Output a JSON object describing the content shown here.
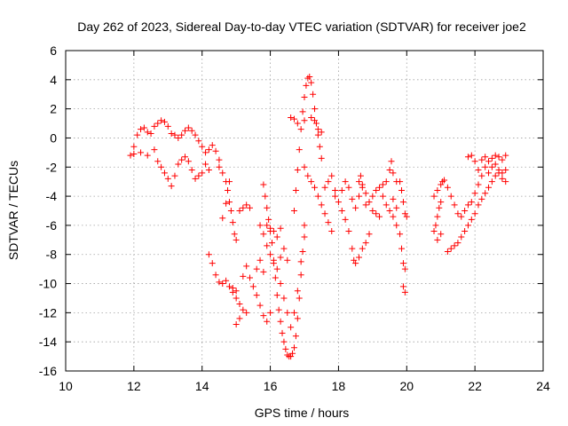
{
  "chart_data": {
    "type": "scatter",
    "title": "Day 262 of 2023, Sidereal Day-to-day VTEC variation (SDTVAR) for receiver joe2",
    "xlabel": "GPS time / hours",
    "ylabel": "SDTVAR / TECUs",
    "xlim": [
      10,
      24
    ],
    "ylim": [
      -16,
      6
    ],
    "xticks": [
      10,
      12,
      14,
      16,
      18,
      20,
      22,
      24
    ],
    "yticks": [
      -16,
      -14,
      -12,
      -10,
      -8,
      -6,
      -4,
      -2,
      0,
      2,
      4,
      6
    ],
    "grid": true,
    "marker": "+",
    "color": "#ff0000",
    "series": [
      {
        "name": "joe2",
        "points": [
          [
            11.9,
            -1.2
          ],
          [
            12.0,
            -0.6
          ],
          [
            12.1,
            0.2
          ],
          [
            12.2,
            0.6
          ],
          [
            12.3,
            0.7
          ],
          [
            12.4,
            0.4
          ],
          [
            12.5,
            0.3
          ],
          [
            12.6,
            0.8
          ],
          [
            12.7,
            1.0
          ],
          [
            12.8,
            1.2
          ],
          [
            12.9,
            1.1
          ],
          [
            13.0,
            0.8
          ],
          [
            13.1,
            0.3
          ],
          [
            13.2,
            0.2
          ],
          [
            13.3,
            0.0
          ],
          [
            13.4,
            0.2
          ],
          [
            13.5,
            0.5
          ],
          [
            13.6,
            0.7
          ],
          [
            13.7,
            0.5
          ],
          [
            13.8,
            0.2
          ],
          [
            13.9,
            -0.2
          ],
          [
            14.0,
            -0.6
          ],
          [
            14.1,
            -1.0
          ],
          [
            14.2,
            -0.8
          ],
          [
            14.3,
            -0.5
          ],
          [
            14.4,
            -0.9
          ],
          [
            14.5,
            -1.5
          ],
          [
            12.0,
            -1.1
          ],
          [
            12.2,
            -1.0
          ],
          [
            12.4,
            -1.2
          ],
          [
            12.6,
            -0.8
          ],
          [
            12.7,
            -1.6
          ],
          [
            12.8,
            -2.0
          ],
          [
            12.9,
            -2.4
          ],
          [
            13.0,
            -2.8
          ],
          [
            13.1,
            -3.3
          ],
          [
            13.2,
            -2.6
          ],
          [
            13.3,
            -1.8
          ],
          [
            13.4,
            -1.5
          ],
          [
            13.5,
            -1.3
          ],
          [
            13.6,
            -1.6
          ],
          [
            13.7,
            -2.2
          ],
          [
            13.8,
            -2.8
          ],
          [
            13.9,
            -2.6
          ],
          [
            14.0,
            -2.4
          ],
          [
            14.1,
            -1.8
          ],
          [
            14.2,
            -2.2
          ],
          [
            14.5,
            -2.0
          ],
          [
            14.6,
            -2.4
          ],
          [
            14.7,
            -3.0
          ],
          [
            14.75,
            -3.6
          ],
          [
            14.8,
            -4.4
          ],
          [
            14.85,
            -5.0
          ],
          [
            14.9,
            -5.8
          ],
          [
            14.95,
            -6.6
          ],
          [
            15.0,
            -7.0
          ],
          [
            14.8,
            -3.0
          ],
          [
            14.7,
            -4.5
          ],
          [
            14.6,
            -5.5
          ],
          [
            15.1,
            -5.0
          ],
          [
            15.2,
            -4.8
          ],
          [
            15.3,
            -4.6
          ],
          [
            15.4,
            -4.8
          ],
          [
            14.2,
            -8.0
          ],
          [
            14.3,
            -8.6
          ],
          [
            14.4,
            -9.4
          ],
          [
            14.5,
            -9.9
          ],
          [
            14.6,
            -10.0
          ],
          [
            14.7,
            -9.8
          ],
          [
            14.8,
            -10.2
          ],
          [
            14.9,
            -10.6
          ],
          [
            15.0,
            -11.0
          ],
          [
            15.1,
            -11.4
          ],
          [
            15.2,
            -11.8
          ],
          [
            15.3,
            -12.0
          ],
          [
            15.0,
            -12.8
          ],
          [
            15.1,
            -12.4
          ],
          [
            14.9,
            -10.3
          ],
          [
            15.0,
            -10.5
          ],
          [
            15.2,
            -9.5
          ],
          [
            15.3,
            -8.8
          ],
          [
            15.4,
            -9.6
          ],
          [
            15.5,
            -10.2
          ],
          [
            15.6,
            -10.8
          ],
          [
            15.7,
            -11.5
          ],
          [
            15.8,
            -12.2
          ],
          [
            15.9,
            -12.6
          ],
          [
            16.0,
            -12.0
          ],
          [
            15.6,
            -9.0
          ],
          [
            15.7,
            -8.4
          ],
          [
            15.8,
            -9.2
          ],
          [
            15.7,
            -6.0
          ],
          [
            15.8,
            -6.6
          ],
          [
            15.9,
            -7.4
          ],
          [
            16.0,
            -8.0
          ],
          [
            16.1,
            -8.6
          ],
          [
            16.2,
            -9.0
          ],
          [
            16.3,
            -8.2
          ],
          [
            16.4,
            -7.6
          ],
          [
            16.5,
            -8.4
          ],
          [
            15.9,
            -6.0
          ],
          [
            16.0,
            -6.2
          ],
          [
            16.1,
            -6.4
          ],
          [
            16.2,
            -6.8
          ],
          [
            16.3,
            -6.2
          ],
          [
            15.8,
            -3.2
          ],
          [
            15.85,
            -4.0
          ],
          [
            15.9,
            -4.8
          ],
          [
            15.95,
            -5.6
          ],
          [
            16.0,
            -6.4
          ],
          [
            16.05,
            -7.2
          ],
          [
            16.1,
            -8.4
          ],
          [
            16.15,
            -9.6
          ],
          [
            16.2,
            -10.8
          ],
          [
            16.25,
            -11.8
          ],
          [
            16.3,
            -12.6
          ],
          [
            16.35,
            -13.4
          ],
          [
            16.4,
            -14.0
          ],
          [
            16.45,
            -14.5
          ],
          [
            16.5,
            -14.9
          ],
          [
            16.55,
            -15.0
          ],
          [
            16.6,
            -15.0
          ],
          [
            16.65,
            -14.8
          ],
          [
            16.7,
            -14.4
          ],
          [
            16.75,
            -13.6
          ],
          [
            16.8,
            -12.4
          ],
          [
            16.85,
            -11.0
          ],
          [
            16.9,
            -9.4
          ],
          [
            16.95,
            -7.8
          ],
          [
            17.0,
            -6.0
          ],
          [
            16.3,
            -10.0
          ],
          [
            16.4,
            -11.0
          ],
          [
            16.5,
            -12.0
          ],
          [
            16.6,
            -13.0
          ],
          [
            16.7,
            -12.0
          ],
          [
            16.8,
            -10.5
          ],
          [
            16.9,
            -8.5
          ],
          [
            17.0,
            -6.8
          ],
          [
            16.7,
            -5.0
          ],
          [
            16.75,
            -3.6
          ],
          [
            16.8,
            -2.2
          ],
          [
            16.85,
            -0.8
          ],
          [
            16.9,
            0.6
          ],
          [
            16.95,
            1.8
          ],
          [
            17.0,
            2.8
          ],
          [
            17.05,
            3.6
          ],
          [
            17.1,
            4.1
          ],
          [
            17.15,
            4.2
          ],
          [
            17.2,
            3.8
          ],
          [
            17.25,
            3.0
          ],
          [
            17.3,
            2.0
          ],
          [
            17.35,
            1.0
          ],
          [
            17.4,
            0.2
          ],
          [
            17.45,
            -0.6
          ],
          [
            17.5,
            -1.4
          ],
          [
            16.6,
            1.4
          ],
          [
            16.7,
            1.3
          ],
          [
            16.8,
            1.0
          ],
          [
            17.0,
            1.2
          ],
          [
            17.2,
            1.4
          ],
          [
            17.3,
            1.2
          ],
          [
            17.4,
            0.6
          ],
          [
            17.5,
            0.4
          ],
          [
            17.0,
            -2.0
          ],
          [
            17.1,
            -2.6
          ],
          [
            17.2,
            -3.0
          ],
          [
            17.3,
            -3.4
          ],
          [
            17.4,
            -4.0
          ],
          [
            17.5,
            -4.6
          ],
          [
            17.6,
            -5.2
          ],
          [
            17.7,
            -5.8
          ],
          [
            17.8,
            -6.4
          ],
          [
            17.6,
            -3.4
          ],
          [
            17.7,
            -3.0
          ],
          [
            17.8,
            -2.6
          ],
          [
            17.9,
            -3.6
          ],
          [
            17.9,
            -4.0
          ],
          [
            18.0,
            -4.4
          ],
          [
            18.1,
            -5.0
          ],
          [
            18.2,
            -5.6
          ],
          [
            18.3,
            -6.4
          ],
          [
            18.4,
            -7.6
          ],
          [
            18.45,
            -8.4
          ],
          [
            18.5,
            -8.6
          ],
          [
            18.6,
            -8.2
          ],
          [
            18.7,
            -7.6
          ],
          [
            18.8,
            -7.2
          ],
          [
            18.9,
            -6.6
          ],
          [
            18.1,
            -3.6
          ],
          [
            18.2,
            -3.0
          ],
          [
            18.3,
            -3.4
          ],
          [
            18.4,
            -4.2
          ],
          [
            18.5,
            -4.8
          ],
          [
            18.6,
            -4.0
          ],
          [
            18.7,
            -3.2
          ],
          [
            18.8,
            -3.8
          ],
          [
            18.9,
            -4.4
          ],
          [
            19.0,
            -5.0
          ],
          [
            19.1,
            -5.2
          ],
          [
            19.2,
            -5.4
          ],
          [
            18.6,
            -3.0
          ],
          [
            18.65,
            -2.6
          ],
          [
            18.7,
            -3.4
          ],
          [
            18.8,
            -4.6
          ],
          [
            19.0,
            -4.0
          ],
          [
            19.1,
            -3.6
          ],
          [
            19.2,
            -3.4
          ],
          [
            19.3,
            -3.2
          ],
          [
            19.4,
            -3.0
          ],
          [
            19.5,
            -2.2
          ],
          [
            19.55,
            -1.6
          ],
          [
            19.6,
            -2.4
          ],
          [
            19.7,
            -3.0
          ],
          [
            19.3,
            -4.0
          ],
          [
            19.4,
            -4.6
          ],
          [
            19.5,
            -5.0
          ],
          [
            19.6,
            -5.4
          ],
          [
            19.7,
            -6.0
          ],
          [
            19.8,
            -6.6
          ],
          [
            19.85,
            -7.6
          ],
          [
            19.9,
            -8.6
          ],
          [
            19.95,
            -9.0
          ],
          [
            19.9,
            -10.2
          ],
          [
            19.95,
            -10.6
          ],
          [
            19.8,
            -3.0
          ],
          [
            19.85,
            -3.6
          ],
          [
            19.9,
            -4.4
          ],
          [
            19.95,
            -5.2
          ],
          [
            20.0,
            -5.4
          ],
          [
            19.7,
            -4.8
          ],
          [
            19.6,
            -4.2
          ],
          [
            20.8,
            -4.0
          ],
          [
            20.9,
            -3.6
          ],
          [
            21.0,
            -3.2
          ],
          [
            21.05,
            -3.0
          ],
          [
            21.1,
            -2.9
          ],
          [
            21.2,
            -3.4
          ],
          [
            21.3,
            -4.0
          ],
          [
            21.4,
            -4.6
          ],
          [
            21.5,
            -5.2
          ],
          [
            21.6,
            -5.4
          ],
          [
            21.7,
            -5.0
          ],
          [
            21.8,
            -4.6
          ],
          [
            21.9,
            -4.4
          ],
          [
            22.0,
            -3.8
          ],
          [
            22.1,
            -3.2
          ],
          [
            22.2,
            -2.6
          ],
          [
            22.3,
            -2.0
          ],
          [
            22.4,
            -1.6
          ],
          [
            22.5,
            -1.4
          ],
          [
            22.6,
            -1.2
          ],
          [
            22.7,
            -1.3
          ],
          [
            22.8,
            -1.5
          ],
          [
            22.9,
            -1.2
          ],
          [
            20.8,
            -6.4
          ],
          [
            20.85,
            -6.0
          ],
          [
            20.9,
            -5.4
          ],
          [
            20.95,
            -4.8
          ],
          [
            21.0,
            -4.4
          ],
          [
            20.9,
            -7.0
          ],
          [
            21.0,
            -6.6
          ],
          [
            21.2,
            -7.8
          ],
          [
            21.3,
            -7.6
          ],
          [
            21.4,
            -7.4
          ],
          [
            21.5,
            -7.2
          ],
          [
            21.6,
            -6.8
          ],
          [
            21.7,
            -6.4
          ],
          [
            21.8,
            -6.0
          ],
          [
            21.9,
            -5.6
          ],
          [
            22.0,
            -5.2
          ],
          [
            22.1,
            -4.6
          ],
          [
            22.2,
            -4.2
          ],
          [
            22.3,
            -3.8
          ],
          [
            22.4,
            -3.4
          ],
          [
            22.5,
            -3.0
          ],
          [
            22.6,
            -2.6
          ],
          [
            22.7,
            -2.4
          ],
          [
            22.8,
            -2.8
          ],
          [
            22.9,
            -3.0
          ],
          [
            21.8,
            -1.3
          ],
          [
            21.9,
            -1.2
          ],
          [
            22.0,
            -1.6
          ],
          [
            22.1,
            -2.2
          ],
          [
            22.2,
            -1.5
          ],
          [
            22.3,
            -1.3
          ],
          [
            22.4,
            -2.4
          ],
          [
            22.5,
            -2.0
          ],
          [
            22.6,
            -1.8
          ],
          [
            22.7,
            -2.2
          ],
          [
            22.8,
            -2.4
          ],
          [
            22.9,
            -2.2
          ]
        ]
      }
    ]
  }
}
